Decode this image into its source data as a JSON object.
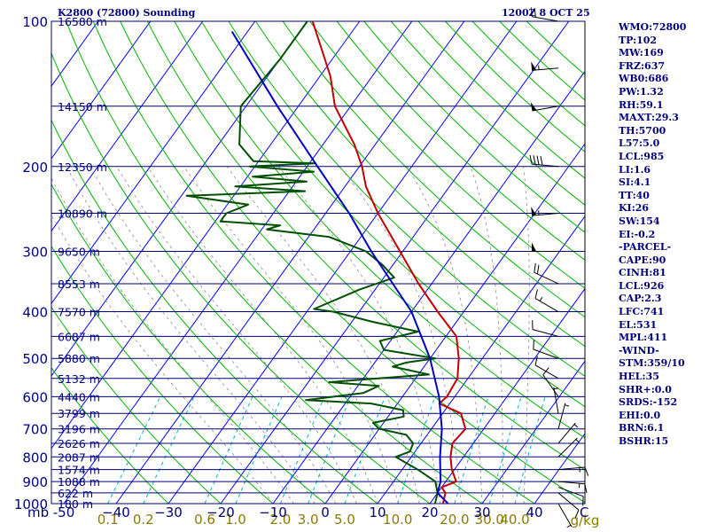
{
  "header": {
    "left": "K2800 (72800) Sounding",
    "right": "1200Z  8 OCT 25"
  },
  "indices": [
    "WMO:72800",
    "TP:102",
    "MW:169",
    "FRZ:637",
    "WB0:686",
    "PW:1.32",
    "RH:59.1",
    "MAXT:29.3",
    "TH:5700",
    "L57:5.0",
    "LCL:985",
    "LI:1.6",
    "SI:4.1",
    "TT:40",
    "KI:26",
    "SW:154",
    "EI:-0.2",
    "-PARCEL-",
    "CAPE:90",
    "CINH:81",
    "LCL:926",
    "CAP:2.3",
    "LFC:741",
    "EL:531",
    "MPL:411",
    "-WIND-",
    "STM:359/10",
    "HEL:35",
    "SHR+:0.0",
    "SRDS:-152",
    "EHI:0.0",
    "BRN:6.1",
    "BSHR:15"
  ],
  "colors": {
    "isobar": "#00007a",
    "isotherm": "#0000ff",
    "dry_adiabat": "#00b400",
    "moist_adiabat": "#8a8a8a",
    "mixing_ratio": "#00b4c8",
    "temperature": "#c00000",
    "dewpoint": "#005000",
    "parcel": "#0000c0",
    "mixing_ratio_label": "#8a7a00",
    "text": "#00007a"
  },
  "chart_data": {
    "type": "line",
    "title": "Skew-T log-P sounding",
    "xlabel": "°C",
    "ylabel": "mb",
    "xlim": [
      -50,
      50
    ],
    "ylim": [
      1000,
      100
    ],
    "pressure_ticks": [
      100,
      200,
      300,
      400,
      500,
      600,
      700,
      800,
      900,
      1000
    ],
    "temperature_ticks": [
      -50,
      -40,
      -30,
      -20,
      -10,
      0,
      10,
      20,
      30,
      40
    ],
    "temperature_tick_labels": [
      "-50",
      "−40",
      "−30",
      "−20",
      "−10",
      "0",
      "10",
      "20",
      "30",
      "40"
    ],
    "axis_units": {
      "pressure": "mb",
      "temperature": "C",
      "mixing_ratio": "g/kg"
    },
    "mixing_ratio_labels": [
      "0.1",
      "0.2",
      "0.6",
      "1.0",
      "2.0",
      "3.0",
      "5.0",
      "10.0",
      "20.0",
      "30.0",
      "40.0"
    ],
    "mixing_ratio_values": [
      0.1,
      0.2,
      0.6,
      1.0,
      2.0,
      3.0,
      5.0,
      10.0,
      20.0,
      30.0,
      40.0
    ],
    "height_labels": [
      {
        "p": 100,
        "label": "16580 m"
      },
      {
        "p": 150,
        "label": "14150 m"
      },
      {
        "p": 200,
        "label": "12350 m"
      },
      {
        "p": 250,
        "label": "10890 m"
      },
      {
        "p": 300,
        "label": "9650 m"
      },
      {
        "p": 350,
        "label": "8553 m"
      },
      {
        "p": 400,
        "label": "7570 m"
      },
      {
        "p": 450,
        "label": "6687 m"
      },
      {
        "p": 500,
        "label": "5880 m"
      },
      {
        "p": 550,
        "label": "5132 m"
      },
      {
        "p": 600,
        "label": "4440 m"
      },
      {
        "p": 650,
        "label": "3799 m"
      },
      {
        "p": 700,
        "label": "3196 m"
      },
      {
        "p": 750,
        "label": "2626 m"
      },
      {
        "p": 800,
        "label": "2087 m"
      },
      {
        "p": 850,
        "label": "1574 m"
      },
      {
        "p": 900,
        "label": "1088 m"
      },
      {
        "p": 950,
        "label": "622 m"
      },
      {
        "p": 1000,
        "label": "180 m"
      }
    ],
    "series": [
      {
        "name": "Temperature",
        "color": "#c00000",
        "points": [
          [
            1000,
            22.5
          ],
          [
            950,
            21.5
          ],
          [
            925,
            20.0
          ],
          [
            900,
            22.0
          ],
          [
            850,
            19.5
          ],
          [
            800,
            17.5
          ],
          [
            750,
            16.0
          ],
          [
            700,
            16.5
          ],
          [
            650,
            13.5
          ],
          [
            620,
            8.0
          ],
          [
            600,
            8.5
          ],
          [
            550,
            8.0
          ],
          [
            500,
            5.5
          ],
          [
            450,
            2.0
          ],
          [
            400,
            -5.0
          ],
          [
            350,
            -12.5
          ],
          [
            300,
            -20.5
          ],
          [
            250,
            -30.0
          ],
          [
            220,
            -36.0
          ],
          [
            200,
            -39.5
          ],
          [
            180,
            -44.0
          ],
          [
            150,
            -53.0
          ],
          [
            130,
            -58.0
          ],
          [
            100,
            -69.0
          ]
        ]
      },
      {
        "name": "Dew Point",
        "color": "#005000",
        "points": [
          [
            1000,
            21.0
          ],
          [
            950,
            20.0
          ],
          [
            900,
            18.0
          ],
          [
            850,
            13.0
          ],
          [
            800,
            7.0
          ],
          [
            780,
            9.0
          ],
          [
            750,
            8.5
          ],
          [
            720,
            6.0
          ],
          [
            700,
            0.0
          ],
          [
            680,
            -2.0
          ],
          [
            660,
            3.0
          ],
          [
            640,
            2.0
          ],
          [
            620,
            -5.0
          ],
          [
            610,
            -18.0
          ],
          [
            590,
            -8.0
          ],
          [
            570,
            -6.0
          ],
          [
            560,
            -16.0
          ],
          [
            540,
            2.0
          ],
          [
            520,
            -6.0
          ],
          [
            510,
            -4.0
          ],
          [
            500,
            1.0
          ],
          [
            480,
            -10.0
          ],
          [
            460,
            -12.0
          ],
          [
            440,
            -6.0
          ],
          [
            420,
            -16.0
          ],
          [
            400,
            -25.0
          ],
          [
            395,
            -29.0
          ],
          [
            360,
            -23.0
          ],
          [
            340,
            -18.0
          ],
          [
            320,
            -22.0
          ],
          [
            300,
            -27.0
          ],
          [
            280,
            -36.0
          ],
          [
            270,
            -49.0
          ],
          [
            265,
            -47.0
          ],
          [
            260,
            -59.0
          ],
          [
            250,
            -59.0
          ],
          [
            240,
            -56.0
          ],
          [
            230,
            -69.0
          ],
          [
            225,
            -47.0
          ],
          [
            220,
            -61.0
          ],
          [
            215,
            -48.0
          ],
          [
            210,
            -59.0
          ],
          [
            205,
            -48.0
          ],
          [
            200,
            -61.0
          ],
          [
            197,
            -49.0
          ],
          [
            195,
            -61.0
          ],
          [
            180,
            -66.0
          ],
          [
            150,
            -71.0
          ],
          [
            120,
            -70.0
          ],
          [
            100,
            -70.0
          ]
        ]
      },
      {
        "name": "Parcel",
        "color": "#0000c0",
        "points": [
          [
            1000,
            23.5
          ],
          [
            950,
            20.0
          ],
          [
            900,
            19.0
          ],
          [
            800,
            15.5
          ],
          [
            700,
            12.0
          ],
          [
            600,
            7.0
          ],
          [
            500,
            0.0
          ],
          [
            400,
            -10.0
          ],
          [
            300,
            -26.0
          ],
          [
            250,
            -35.5
          ],
          [
            200,
            -48.0
          ],
          [
            150,
            -64.0
          ],
          [
            105,
            -83.0
          ]
        ]
      }
    ],
    "winds": [
      {
        "p": 1000,
        "dir": 150,
        "spd": 5
      },
      {
        "p": 950,
        "dir": 130,
        "spd": 10
      },
      {
        "p": 925,
        "dir": 110,
        "spd": 10
      },
      {
        "p": 900,
        "dir": 95,
        "spd": 15
      },
      {
        "p": 850,
        "dir": 85,
        "spd": 15
      },
      {
        "p": 800,
        "dir": 45,
        "spd": 5
      },
      {
        "p": 750,
        "dir": 40,
        "spd": 5
      },
      {
        "p": 700,
        "dir": 15,
        "spd": 5
      },
      {
        "p": 650,
        "dir": 350,
        "spd": 5
      },
      {
        "p": 600,
        "dir": 325,
        "spd": 10
      },
      {
        "p": 550,
        "dir": 300,
        "spd": 10
      },
      {
        "p": 500,
        "dir": 290,
        "spd": 10
      },
      {
        "p": 450,
        "dir": 285,
        "spd": 10
      },
      {
        "p": 400,
        "dir": 300,
        "spd": 15
      },
      {
        "p": 350,
        "dir": 295,
        "spd": 20
      },
      {
        "p": 300,
        "dir": 270,
        "spd": 50
      },
      {
        "p": 250,
        "dir": 265,
        "spd": 55
      },
      {
        "p": 200,
        "dir": 275,
        "spd": 40
      },
      {
        "p": 150,
        "dir": 260,
        "spd": 50
      },
      {
        "p": 125,
        "dir": 265,
        "spd": 55
      },
      {
        "p": 100,
        "dir": 280,
        "spd": 20
      }
    ]
  }
}
